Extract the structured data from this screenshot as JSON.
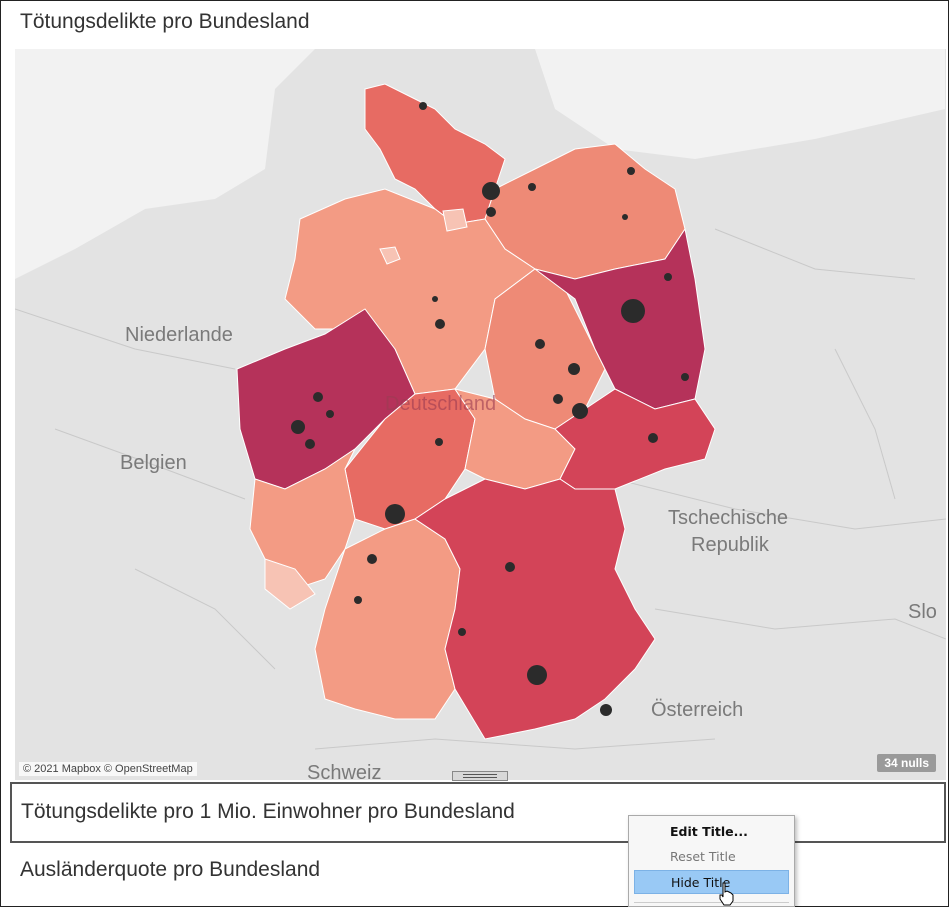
{
  "worksheet_title": "Tötungsdelikte pro Bundesland",
  "map": {
    "country_label": "Deutschland",
    "neighbor_labels": {
      "netherlands": "Niederlande",
      "belgium": "Belgien",
      "czech": "Tschechische Republik",
      "czech_line1": "Tschechische",
      "czech_line2": "Republik",
      "austria": "Österreich",
      "switzerland": "Schweiz",
      "slovakia": "Slo"
    },
    "attribution": "© 2021 Mapbox © OpenStreetMap",
    "nulls_badge": "34 nulls",
    "colors": {
      "background": "#e3e3e3",
      "darkest": "#b5325a",
      "dark": "#d34458",
      "medium": "#e76b63",
      "light": "#f39b84",
      "lightest": "#f7c3b4",
      "dots": "#2b2b2b"
    }
  },
  "sheet_title_editing": "Tötungsdelikte pro 1 Mio. Einwohner pro Bundesland",
  "next_sheet_title": "Ausländerquote pro Bundesland",
  "context_menu": {
    "items": [
      {
        "label": "Edit Title...",
        "state": "default"
      },
      {
        "label": "Reset Title",
        "state": "disabled"
      },
      {
        "label": "Hide Title",
        "state": "highlighted"
      }
    ]
  }
}
